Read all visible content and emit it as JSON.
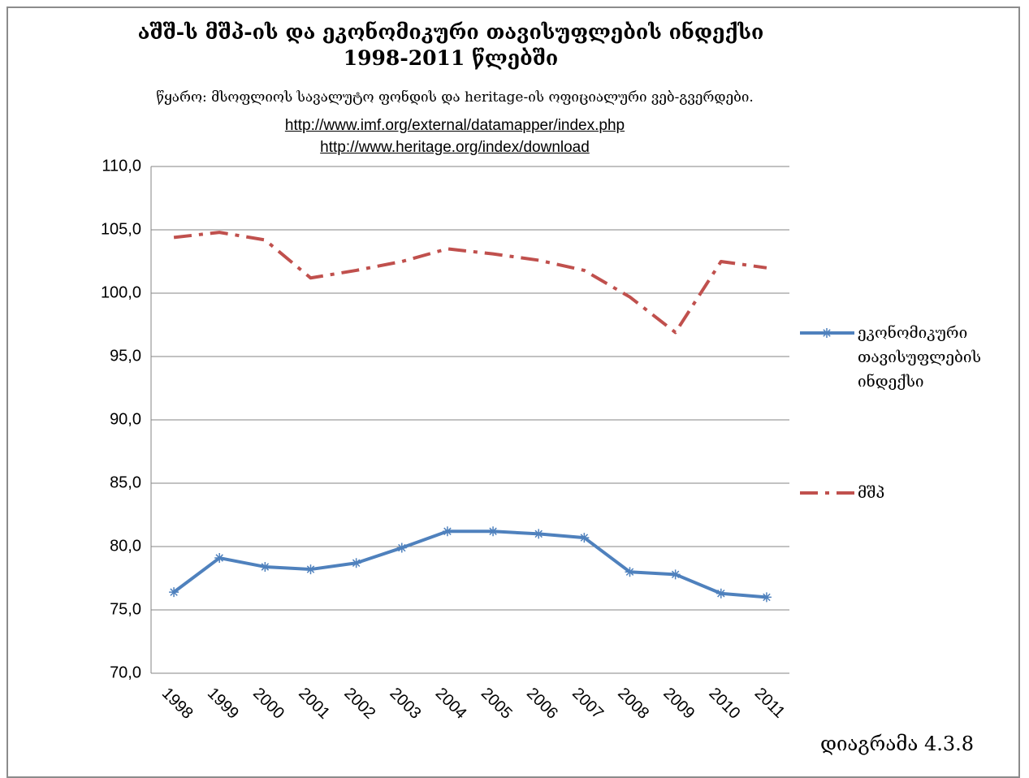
{
  "chart_data": {
    "type": "line",
    "title": "აშშ-ს  მშპ-ის და ეკონომიკური თავისუფლების ინდექსი 1998-2011 წლებში",
    "subtitle": "წყარო:  მსოფლიოს სავალუტო ფონდის და  heritage-ის ოფიციალური ვებ-გვერდები.",
    "links": [
      "http://www.imf.org/external/datamapper/index.php",
      "http://www.heritage.org/index/download"
    ],
    "annotation": "დიაგრამა 4.3.8",
    "categories": [
      "1998",
      "1999",
      "2000",
      "2001",
      "2002",
      "2003",
      "2004",
      "2005",
      "2006",
      "2007",
      "2008",
      "2009",
      "2010",
      "2011"
    ],
    "series": [
      {
        "name": "ეკონომიკური თავისუფლების ინდექსი",
        "color": "#4f81bd",
        "style": "solid",
        "marker": "asterisk",
        "values": [
          76.4,
          79.1,
          78.4,
          78.2,
          78.7,
          79.9,
          81.2,
          81.2,
          81.0,
          80.7,
          78.0,
          77.8,
          76.3,
          76.0
        ]
      },
      {
        "name": "მშპ",
        "color": "#c0504d",
        "style": "dash-dot",
        "marker": "none",
        "values": [
          104.4,
          104.8,
          104.2,
          101.2,
          101.8,
          102.5,
          103.5,
          103.1,
          102.6,
          101.8,
          99.7,
          96.9,
          102.5,
          102.0
        ]
      }
    ],
    "ylim": [
      70,
      110
    ],
    "yticks": [
      {
        "value": 70,
        "label": "70,0"
      },
      {
        "value": 75,
        "label": "75,0"
      },
      {
        "value": 80,
        "label": "80,0"
      },
      {
        "value": 85,
        "label": "85,0"
      },
      {
        "value": 90,
        "label": "90,0"
      },
      {
        "value": 95,
        "label": "95,0"
      },
      {
        "value": 100,
        "label": "100,0"
      },
      {
        "value": 105,
        "label": "105,0"
      },
      {
        "value": 110,
        "label": "110,0"
      }
    ],
    "grid": true,
    "legend": "right"
  }
}
